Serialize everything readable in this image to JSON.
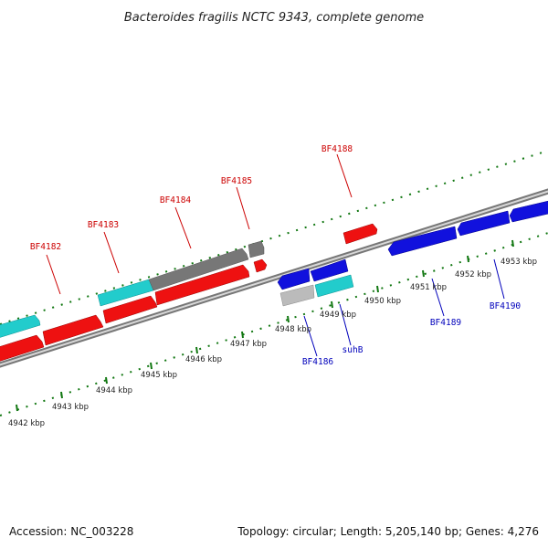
{
  "title": "Bacteroides fragilis NCTC 9343, complete genome",
  "footer": {
    "accession": "Accession: NC_003228",
    "summary": "Topology: circular; Length: 5,205,140 bp; Genes: 4,276"
  },
  "colors": {
    "forward_gene": "#ee1111",
    "reverse_gene": "#1111dd",
    "rna_feature": "#22cccc",
    "pseudo_feature": "#777777",
    "light_feature": "#bbbbbb",
    "tick": "#117711",
    "label_forward": "#cc0000",
    "label_reverse": "#0000bb",
    "backbone": "#888888"
  },
  "ticks": [
    "4942 kbp",
    "4943 kbp",
    "4944 kbp",
    "4945 kbp",
    "4946 kbp",
    "4947 kbp",
    "4948 kbp",
    "4949 kbp",
    "4950 kbp",
    "4951 kbp",
    "4952 kbp",
    "4953 kbp"
  ],
  "forward_labels": [
    "BF4182",
    "BF4183",
    "BF4184",
    "BF4185",
    "BF4188"
  ],
  "reverse_labels": [
    "BF4186",
    "suhB",
    "BF4189",
    "BF4190"
  ]
}
